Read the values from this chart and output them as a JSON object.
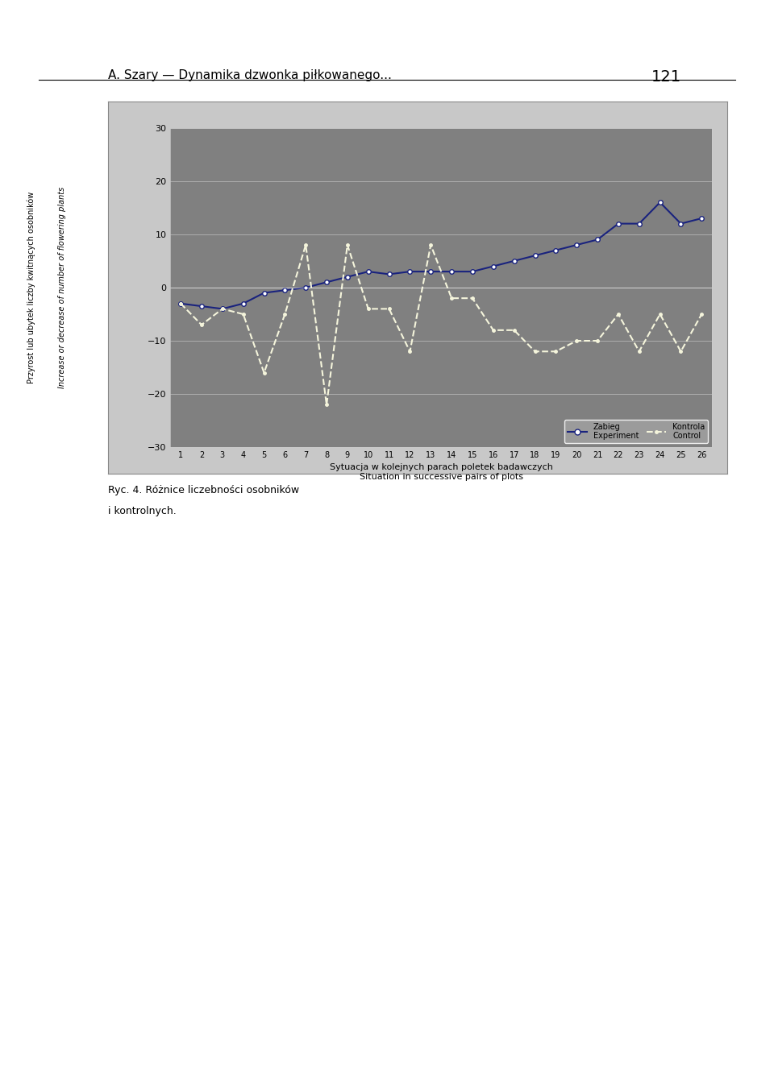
{
  "x": [
    1,
    2,
    3,
    4,
    5,
    6,
    7,
    8,
    9,
    10,
    11,
    12,
    13,
    14,
    15,
    16,
    17,
    18,
    19,
    20,
    21,
    22,
    23,
    24,
    25,
    26
  ],
  "zabieg": [
    -3,
    -3.5,
    -4,
    -3,
    -1,
    -0.5,
    0,
    1,
    2,
    3,
    2.5,
    3,
    3,
    3,
    3,
    4,
    5,
    6,
    7,
    8,
    9,
    12,
    12,
    16,
    12,
    13
  ],
  "kontrola": [
    -3,
    -7,
    -4,
    -5,
    -16,
    -5,
    8,
    -22,
    8,
    -4,
    -4,
    -12,
    8,
    -2,
    -2,
    -8,
    -8,
    -12,
    -12,
    -10,
    -10,
    -5,
    -12,
    -5,
    -12,
    -5
  ],
  "zabieg_color": "#1a237e",
  "kontrola_color": "#f5f5dc",
  "bg_color": "#909090",
  "plot_bg_color": "#808080",
  "ylabel_pl": "Przyrost lub ubytek liczby kwitnących osobników",
  "ylabel_en": "Increase or decrease of number of flowering plants",
  "xlabel_pl": "Sytuacja w kolejnych parach poletek badawczych",
  "xlabel_en": "Situation in successive pairs of plots",
  "legend_zabieg_pl": "Zabieg",
  "legend_zabieg_en": "Experiment",
  "legend_kontrola_pl": "Kontrola",
  "legend_kontrola_en": "Control",
  "ylim": [
    -30,
    30
  ],
  "yticks": [
    -30,
    -20,
    -10,
    0,
    10,
    20,
    30
  ],
  "figure_bg": "#ffffff"
}
